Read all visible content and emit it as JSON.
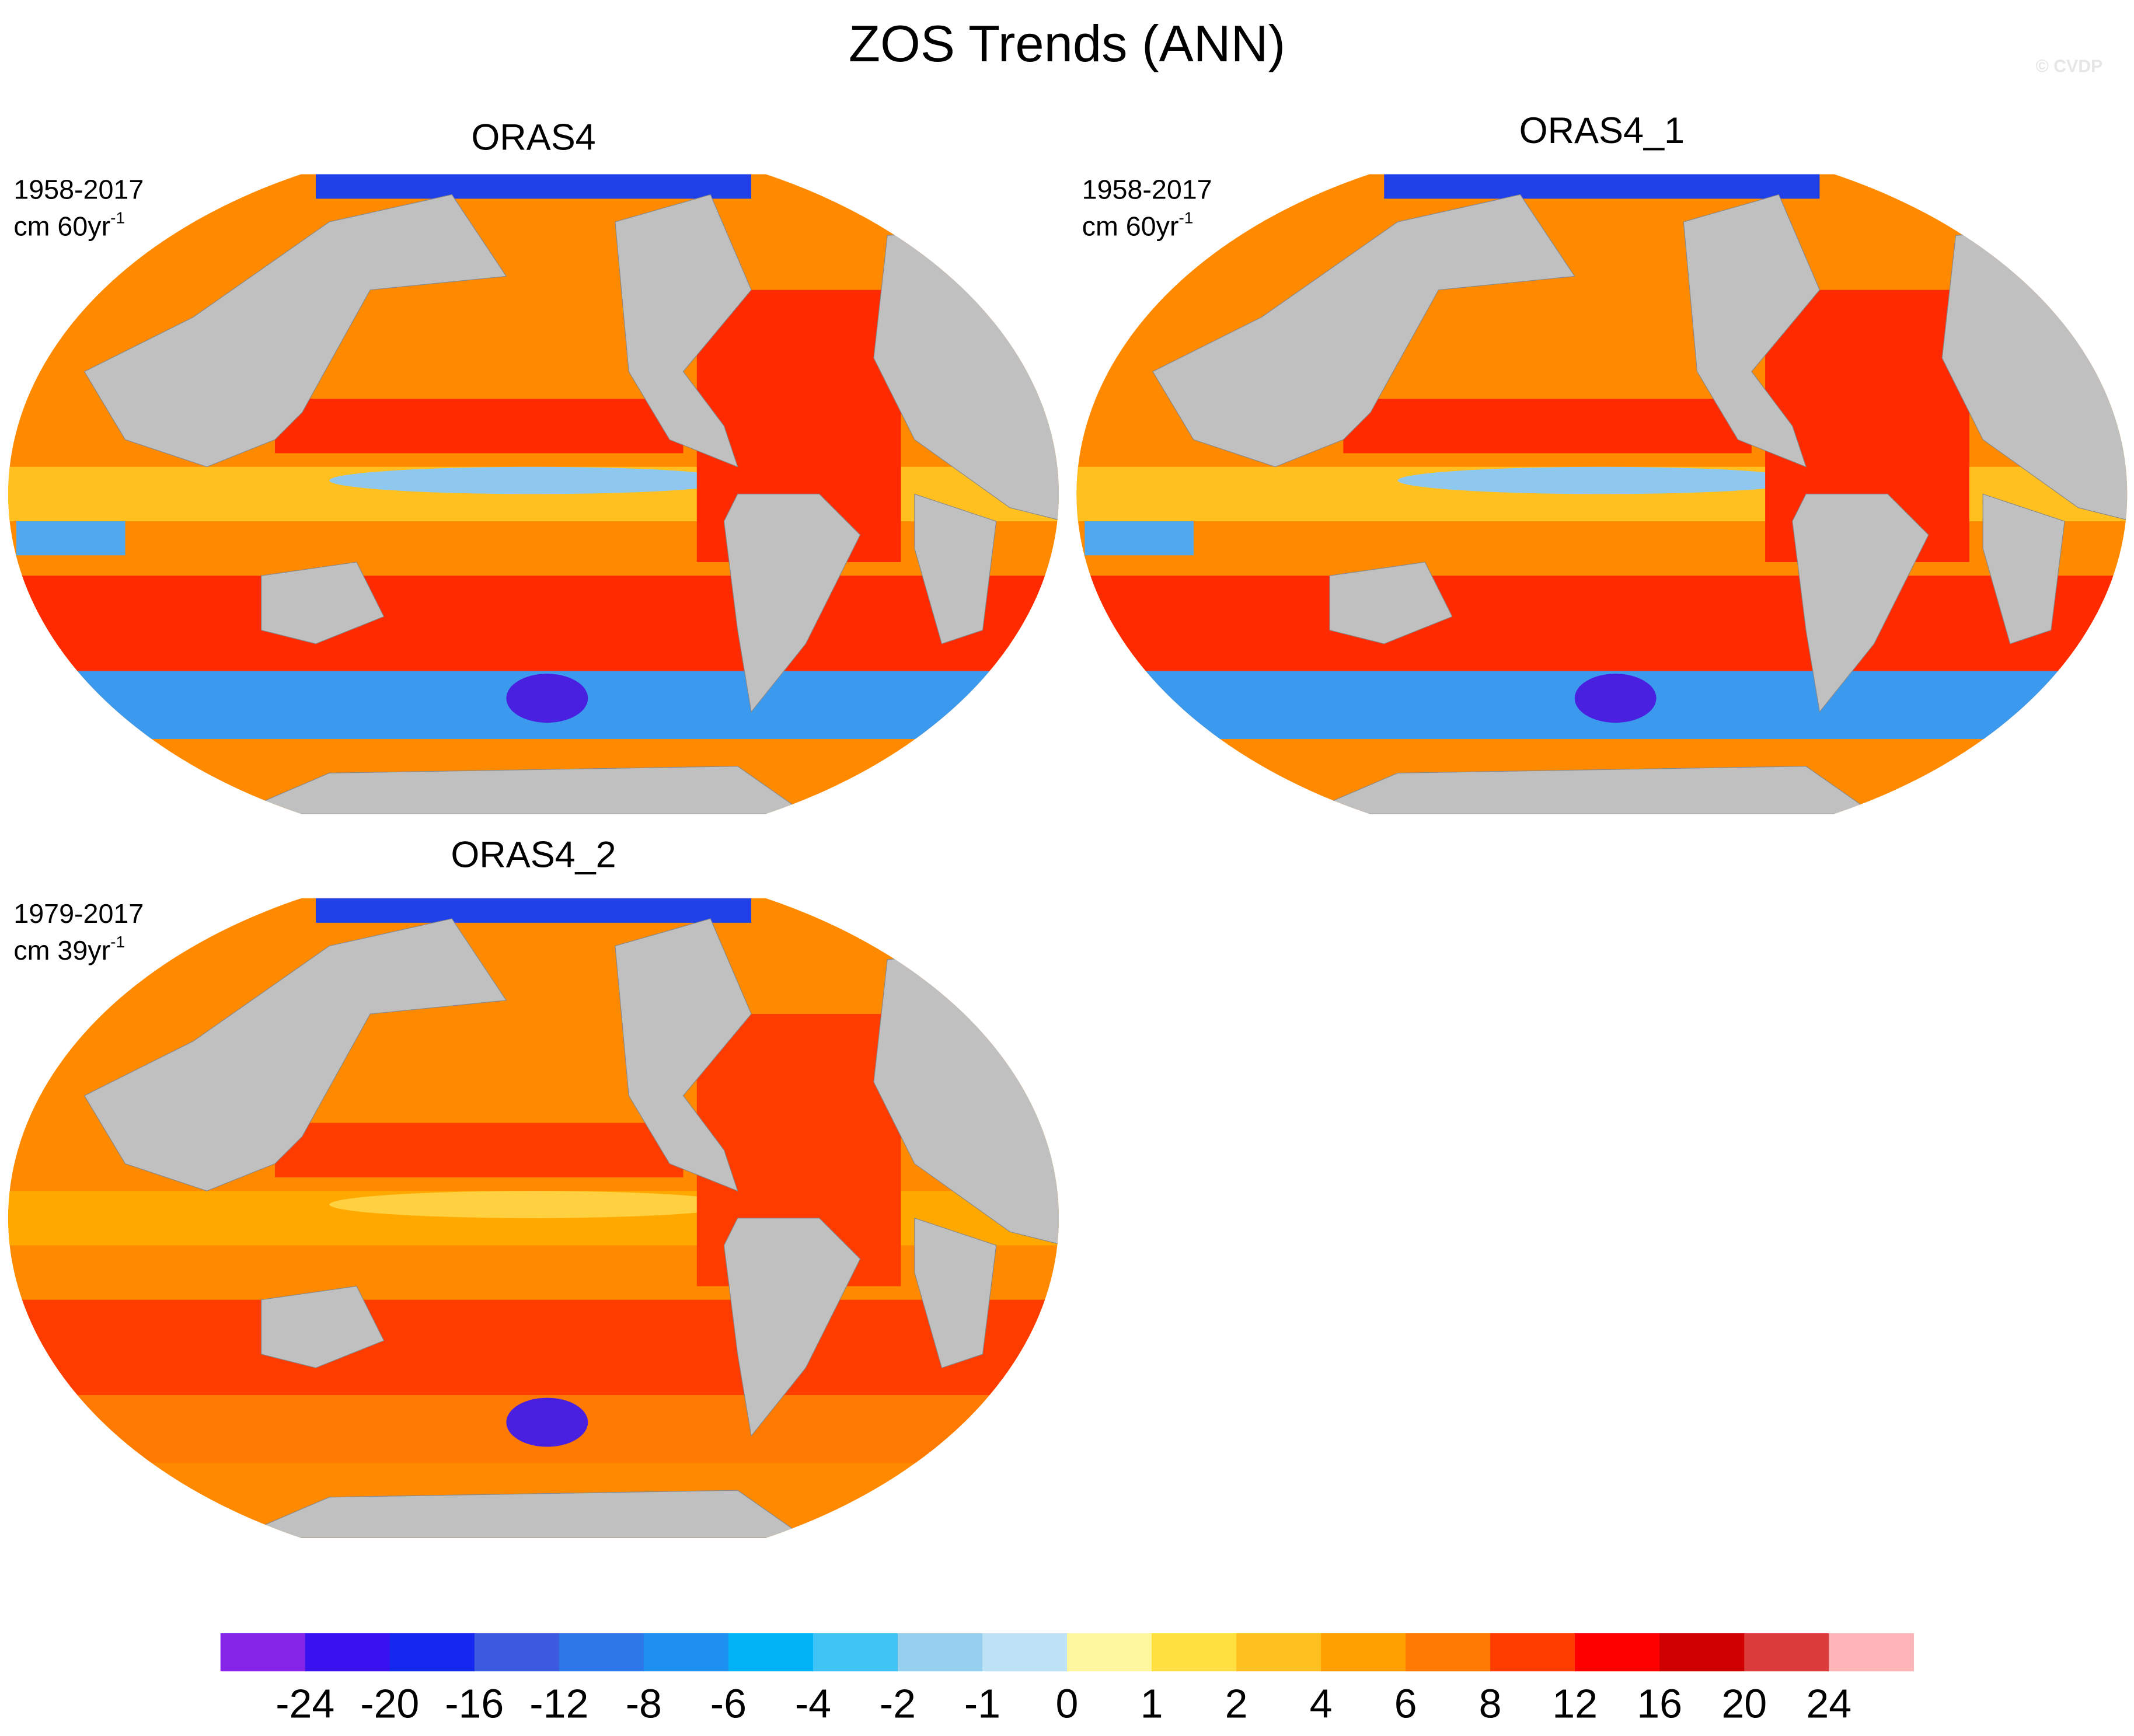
{
  "title": "ZOS Trends (ANN)",
  "watermark": "© CVDP",
  "panels": [
    {
      "title": "ORAS4",
      "period": "1958-2017",
      "units": "cm 60yr",
      "units_exp": "-1"
    },
    {
      "title": "ORAS4_1",
      "period": "1958-2017",
      "units": "cm 60yr",
      "units_exp": "-1"
    },
    {
      "title": "ORAS4_2",
      "period": "1979-2017",
      "units": "cm 39yr",
      "units_exp": "-1"
    }
  ],
  "colorbar": {
    "levels": [
      -24,
      -20,
      -16,
      -12,
      -8,
      -6,
      -4,
      -2,
      -1,
      0,
      1,
      2,
      4,
      6,
      8,
      12,
      16,
      20,
      24
    ],
    "colors": [
      "#8624e8",
      "#3a12f2",
      "#1428f0",
      "#3c5ae0",
      "#2d78e8",
      "#1e90f0",
      "#00b4f5",
      "#40c4f5",
      "#96d0ee",
      "#bde2f6",
      "#fff7a0",
      "#ffe040",
      "#ffc020",
      "#ffa000",
      "#ff7a00",
      "#ff3c00",
      "#ff0000",
      "#d00000",
      "#dc3c3c",
      "#ffb4b8"
    ]
  }
}
